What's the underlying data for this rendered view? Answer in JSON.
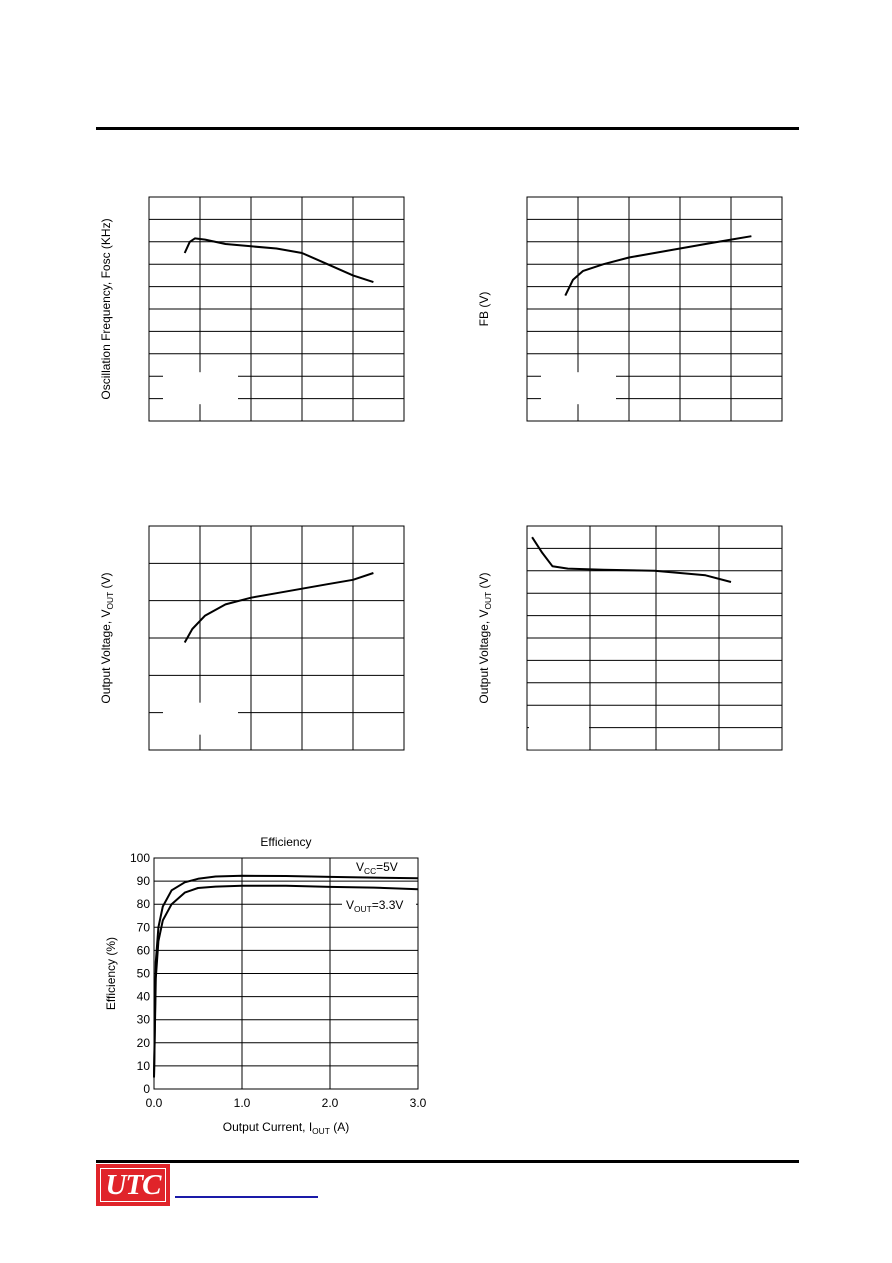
{
  "logo": {
    "text": "UTC",
    "color": "#e0242a"
  },
  "link": {
    "color": "#1a1aa8"
  },
  "charts": {
    "osc": {
      "ylabel": "Oscillation Frequency, Fosc (KHz)",
      "cols": 5,
      "rows": 10,
      "curve": [
        [
          0.14,
          0.75
        ],
        [
          0.16,
          0.8
        ],
        [
          0.18,
          0.815
        ],
        [
          0.22,
          0.81
        ],
        [
          0.3,
          0.79
        ],
        [
          0.4,
          0.78
        ],
        [
          0.5,
          0.77
        ],
        [
          0.6,
          0.75
        ],
        [
          0.7,
          0.7
        ],
        [
          0.8,
          0.65
        ],
        [
          0.88,
          0.62
        ]
      ]
    },
    "fb": {
      "ylabel": "FB (V)",
      "cols": 5,
      "rows": 10,
      "curve": [
        [
          0.15,
          0.56
        ],
        [
          0.18,
          0.63
        ],
        [
          0.22,
          0.67
        ],
        [
          0.3,
          0.7
        ],
        [
          0.4,
          0.73
        ],
        [
          0.5,
          0.75
        ],
        [
          0.6,
          0.77
        ],
        [
          0.7,
          0.79
        ],
        [
          0.8,
          0.81
        ],
        [
          0.88,
          0.825
        ]
      ]
    },
    "vout1": {
      "ylabel": "Output Voltage, V",
      "ylabel_sub": "OUT",
      "ylabel_unit": " (V)",
      "cols": 5,
      "rows": 6,
      "curve": [
        [
          0.14,
          0.48
        ],
        [
          0.17,
          0.54
        ],
        [
          0.22,
          0.6
        ],
        [
          0.3,
          0.65
        ],
        [
          0.4,
          0.68
        ],
        [
          0.5,
          0.7
        ],
        [
          0.6,
          0.72
        ],
        [
          0.7,
          0.74
        ],
        [
          0.8,
          0.76
        ],
        [
          0.88,
          0.79
        ]
      ]
    },
    "vout2": {
      "ylabel": "Output Voltage, V",
      "ylabel_sub": "OUT",
      "ylabel_unit": " (V)",
      "cols": 4,
      "rows": 10,
      "curve": [
        [
          0.02,
          0.95
        ],
        [
          0.06,
          0.88
        ],
        [
          0.1,
          0.82
        ],
        [
          0.16,
          0.81
        ],
        [
          0.3,
          0.805
        ],
        [
          0.5,
          0.8
        ],
        [
          0.7,
          0.78
        ],
        [
          0.8,
          0.75
        ]
      ]
    }
  },
  "chart_data": {
    "type": "line",
    "title": "Efficiency",
    "xlabel": "Output Current, I",
    "xlabel_sub": "OUT",
    "xlabel_unit": " (A)",
    "ylabel": "Efficiency (%)",
    "xlim": [
      0,
      3
    ],
    "ylim": [
      0,
      100
    ],
    "x_ticks": [
      "0.0",
      "1.0",
      "2.0",
      "3.0"
    ],
    "y_ticks": [
      "0",
      "10",
      "20",
      "30",
      "40",
      "50",
      "60",
      "70",
      "80",
      "90",
      "100"
    ],
    "grid": true,
    "annotations": [
      {
        "prefix": "V",
        "sub": "CC",
        "suffix": "=5V"
      },
      {
        "prefix": "V",
        "sub": "OUT",
        "suffix": "=3.3V"
      }
    ],
    "series": [
      {
        "x": [
          0,
          0.02,
          0.05,
          0.1,
          0.2,
          0.35,
          0.5,
          0.7,
          1.0,
          1.5,
          2.0,
          2.5,
          3.0
        ],
        "y": [
          5,
          55,
          70,
          79,
          86,
          89.5,
          91,
          92,
          92.3,
          92.2,
          91.8,
          91.5,
          91.2
        ]
      },
      {
        "x": [
          0,
          0.02,
          0.05,
          0.1,
          0.2,
          0.35,
          0.5,
          0.7,
          1.0,
          1.5,
          2.0,
          2.5,
          3.0
        ],
        "y": [
          5,
          48,
          64,
          73,
          80,
          85,
          87,
          87.6,
          88,
          88,
          87.5,
          87.2,
          86.5
        ]
      }
    ]
  }
}
